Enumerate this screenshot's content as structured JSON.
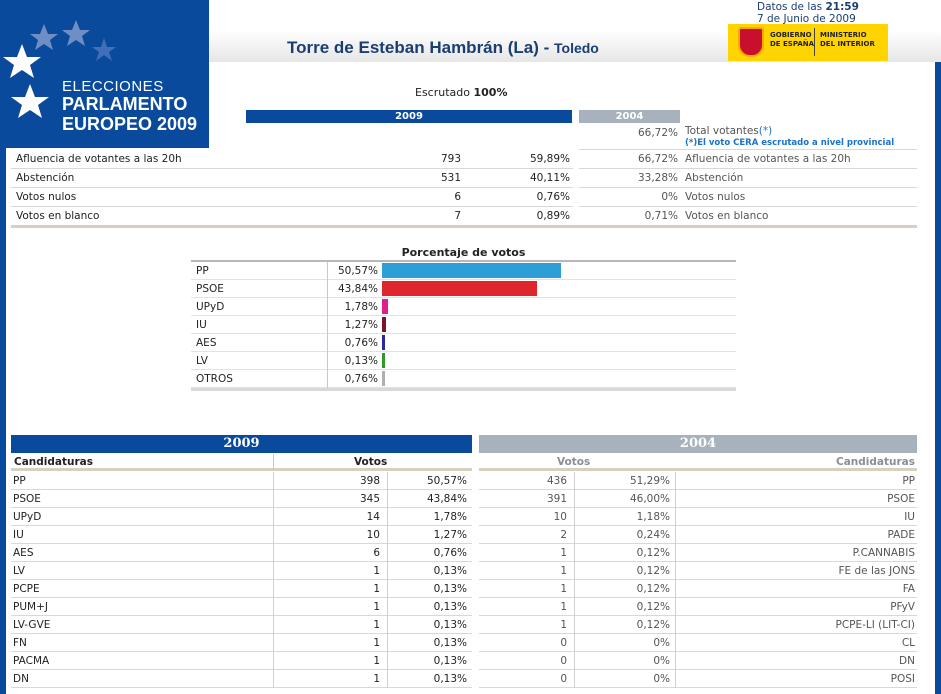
{
  "header": {
    "logo_line1": "ELECCIONES",
    "logo_line2": "PARLAMENTO",
    "logo_line3": "EUROPEO 2009",
    "datos_label": "Datos de las",
    "time": "21:59",
    "date": "7 de Junio de 2009",
    "municipality": "Torre de Esteban Hambrán (La)",
    "separator": " - ",
    "province": "Toledo",
    "gov_line1": "GOBIERNO",
    "gov_line2": "DE ESPAÑA",
    "ministry_line1": "MINISTERIO",
    "ministry_line2": "DEL INTERIOR"
  },
  "summary": {
    "escrutado_label": "Escrutado",
    "escrutado_value": "100%",
    "year_2009": "2009",
    "year_2004": "2004",
    "total_pct_2004": "66,72%",
    "total_label": "Total votantes",
    "total_star": "(*)",
    "total_note": "(*)El voto CERA escrutado a nivel provincial",
    "rows": [
      {
        "label": "Afluencia de votantes a las 20h",
        "votes": "793",
        "pct": "59,89%",
        "pct_2004": "66,72%"
      },
      {
        "label": "Abstención",
        "votes": "531",
        "pct": "40,11%",
        "pct_2004": "33,28%"
      },
      {
        "label": "Votos nulos",
        "votes": "6",
        "pct": "0,76%",
        "pct_2004": "0%"
      },
      {
        "label": "Votos en blanco",
        "votes": "7",
        "pct": "0,89%",
        "pct_2004": "0,71%"
      }
    ]
  },
  "chart_data": {
    "type": "bar",
    "title": "Porcentaje de votos",
    "categories": [
      "PP",
      "PSOE",
      "UPyD",
      "IU",
      "AES",
      "LV",
      "OTROS"
    ],
    "values": [
      50.57,
      43.84,
      1.78,
      1.27,
      0.76,
      0.13,
      0.76
    ],
    "labels": [
      "50,57%",
      "43,84%",
      "1,78%",
      "1,27%",
      "0,76%",
      "0,13%",
      "0,76%"
    ],
    "colors": [
      "#2e9ed8",
      "#e0262d",
      "#e0208a",
      "#7a1428",
      "#2a2aa0",
      "#2a9a2a",
      "#b0b0b0"
    ],
    "xlim": [
      0,
      100
    ]
  },
  "results": {
    "year_2009": "2009",
    "year_2004": "2004",
    "col_candidaturas": "Candidaturas",
    "col_votos": "Votos",
    "rows_2009": [
      {
        "party": "PP",
        "votes": "398",
        "pct": "50,57%"
      },
      {
        "party": "PSOE",
        "votes": "345",
        "pct": "43,84%"
      },
      {
        "party": "UPyD",
        "votes": "14",
        "pct": "1,78%"
      },
      {
        "party": "IU",
        "votes": "10",
        "pct": "1,27%"
      },
      {
        "party": "AES",
        "votes": "6",
        "pct": "0,76%"
      },
      {
        "party": "LV",
        "votes": "1",
        "pct": "0,13%"
      },
      {
        "party": "PCPE",
        "votes": "1",
        "pct": "0,13%"
      },
      {
        "party": "PUM+J",
        "votes": "1",
        "pct": "0,13%"
      },
      {
        "party": "LV-GVE",
        "votes": "1",
        "pct": "0,13%"
      },
      {
        "party": "FN",
        "votes": "1",
        "pct": "0,13%"
      },
      {
        "party": "PACMA",
        "votes": "1",
        "pct": "0,13%"
      },
      {
        "party": "DN",
        "votes": "1",
        "pct": "0,13%"
      }
    ],
    "rows_2004": [
      {
        "votes": "436",
        "pct": "51,29%",
        "party": "PP"
      },
      {
        "votes": "391",
        "pct": "46,00%",
        "party": "PSOE"
      },
      {
        "votes": "10",
        "pct": "1,18%",
        "party": "IU"
      },
      {
        "votes": "2",
        "pct": "0,24%",
        "party": "PADE"
      },
      {
        "votes": "1",
        "pct": "0,12%",
        "party": "P.CANNABIS"
      },
      {
        "votes": "1",
        "pct": "0,12%",
        "party": "FE de las JONS"
      },
      {
        "votes": "1",
        "pct": "0,12%",
        "party": "FA"
      },
      {
        "votes": "1",
        "pct": "0,12%",
        "party": "PFyV"
      },
      {
        "votes": "1",
        "pct": "0,12%",
        "party": "PCPE-LI (LIT-CI)"
      },
      {
        "votes": "0",
        "pct": "0%",
        "party": "CL"
      },
      {
        "votes": "0",
        "pct": "0%",
        "party": "DN"
      },
      {
        "votes": "0",
        "pct": "0%",
        "party": "POSI"
      }
    ]
  }
}
